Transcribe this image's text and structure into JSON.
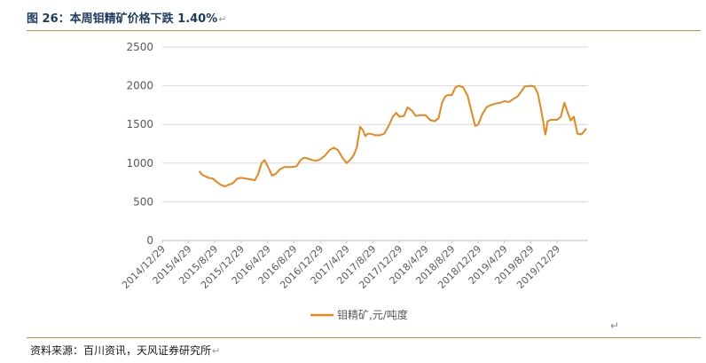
{
  "header": {
    "title": "图 26：本周钼精矿价格下跌 1.40%"
  },
  "footer": {
    "source": "资料来源：百川资讯，天风证券研究所"
  },
  "chart_data": {
    "type": "line",
    "title": "图 26：本周钼精矿价格下跌 1.40%",
    "xlabel": "",
    "ylabel": "",
    "ylim": [
      0,
      2500
    ],
    "yticks": [
      0,
      500,
      1000,
      1500,
      2000,
      2500
    ],
    "xlim": [
      "2014-12-29",
      "2020-05-20"
    ],
    "xticks": [
      "2014/12/29",
      "2015/4/29",
      "2015/8/29",
      "2015/12/29",
      "2016/4/29",
      "2016/8/29",
      "2016/12/29",
      "2017/4/29",
      "2017/8/29",
      "2017/12/29",
      "2018/4/29",
      "2018/8/29",
      "2018/12/29",
      "2019/4/29",
      "2019/8/29",
      "2019/12/29"
    ],
    "grid": "horizontal",
    "legend": "bottom",
    "series": [
      {
        "name": "钼精矿,元/吨度",
        "color": "#e8871e",
        "x": [
          "2015-06-20",
          "2015-07-01",
          "2015-07-15",
          "2015-08-01",
          "2015-08-20",
          "2015-09-05",
          "2015-09-25",
          "2015-10-15",
          "2015-11-01",
          "2015-11-20",
          "2015-12-10",
          "2015-12-29",
          "2016-01-20",
          "2016-02-10",
          "2016-03-01",
          "2016-03-15",
          "2016-04-01",
          "2016-04-15",
          "2016-05-01",
          "2016-05-20",
          "2016-06-05",
          "2016-06-25",
          "2016-07-15",
          "2016-08-01",
          "2016-08-20",
          "2016-09-10",
          "2016-09-29",
          "2016-10-15",
          "2016-11-01",
          "2016-11-20",
          "2016-12-10",
          "2016-12-29",
          "2017-01-20",
          "2017-02-10",
          "2017-03-01",
          "2017-03-20",
          "2017-04-10",
          "2017-04-29",
          "2017-05-15",
          "2017-06-01",
          "2017-06-15",
          "2017-07-01",
          "2017-07-15",
          "2017-07-25",
          "2017-08-05",
          "2017-08-20",
          "2017-09-10",
          "2017-09-29",
          "2017-10-20",
          "2017-11-10",
          "2017-11-29",
          "2017-12-15",
          "2017-12-29",
          "2018-01-20",
          "2018-02-05",
          "2018-02-25",
          "2018-03-15",
          "2018-04-05",
          "2018-04-29",
          "2018-05-20",
          "2018-06-10",
          "2018-06-29",
          "2018-07-15",
          "2018-07-29",
          "2018-08-10",
          "2018-08-29",
          "2018-09-15",
          "2018-10-01",
          "2018-10-20",
          "2018-11-10",
          "2018-11-29",
          "2018-12-15",
          "2018-12-29",
          "2019-01-15",
          "2019-02-05",
          "2019-02-25",
          "2019-03-20",
          "2019-04-10",
          "2019-04-29",
          "2019-05-20",
          "2019-06-10",
          "2019-06-29",
          "2019-07-15",
          "2019-08-01",
          "2019-08-29",
          "2019-09-15",
          "2019-10-01",
          "2019-10-15",
          "2019-10-25",
          "2019-11-01",
          "2019-11-05",
          "2019-11-15",
          "2019-11-29",
          "2019-12-15",
          "2019-12-29",
          "2020-01-15",
          "2020-02-01",
          "2020-02-15",
          "2020-03-01",
          "2020-03-15",
          "2020-04-01",
          "2020-04-20",
          "2020-05-10"
        ],
        "values": [
          890,
          850,
          830,
          810,
          800,
          760,
          720,
          700,
          720,
          740,
          800,
          810,
          800,
          790,
          780,
          850,
          1000,
          1040,
          950,
          840,
          860,
          920,
          950,
          950,
          950,
          960,
          1040,
          1070,
          1060,
          1040,
          1030,
          1050,
          1100,
          1170,
          1200,
          1170,
          1070,
          1000,
          1040,
          1100,
          1200,
          1470,
          1420,
          1350,
          1380,
          1380,
          1360,
          1360,
          1380,
          1480,
          1600,
          1650,
          1600,
          1610,
          1720,
          1680,
          1610,
          1620,
          1620,
          1560,
          1540,
          1580,
          1780,
          1860,
          1880,
          1880,
          1980,
          2000,
          1980,
          1870,
          1660,
          1480,
          1500,
          1620,
          1720,
          1750,
          1770,
          1780,
          1800,
          1790,
          1830,
          1860,
          1920,
          1990,
          2000,
          1990,
          1900,
          1700,
          1550,
          1420,
          1370,
          1540,
          1560,
          1560,
          1560,
          1600,
          1780,
          1660,
          1550,
          1600,
          1380,
          1370,
          1440
        ]
      }
    ]
  }
}
